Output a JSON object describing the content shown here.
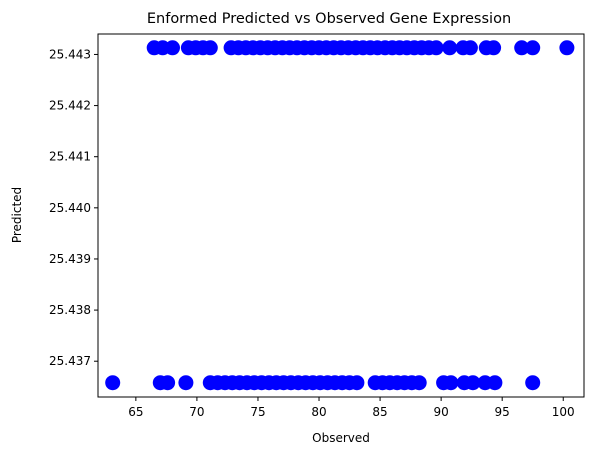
{
  "chart_data": {
    "type": "scatter",
    "title": "Enformed Predicted vs Observed Gene Expression",
    "xlabel": "Observed",
    "ylabel": "Predicted",
    "xlim": [
      61.9,
      101.7
    ],
    "ylim": [
      25.4363,
      25.4434
    ],
    "xticks": [
      65,
      70,
      75,
      80,
      85,
      90,
      95,
      100
    ],
    "yticks": [
      25.437,
      25.438,
      25.439,
      25.44,
      25.441,
      25.442,
      25.443
    ],
    "ytick_decimals": 3,
    "marker_color": "#0000ff",
    "grid": false,
    "series": [
      {
        "values": [
          [
            66.5,
            25.44313
          ],
          [
            67.2,
            25.44313
          ],
          [
            68.0,
            25.44313
          ],
          [
            69.3,
            25.44313
          ],
          [
            69.9,
            25.44313
          ],
          [
            70.5,
            25.44313
          ],
          [
            71.1,
            25.44313
          ],
          [
            72.8,
            25.44313
          ],
          [
            73.4,
            25.44313
          ],
          [
            74.0,
            25.44313
          ],
          [
            74.6,
            25.44313
          ],
          [
            75.2,
            25.44313
          ],
          [
            75.8,
            25.44313
          ],
          [
            76.4,
            25.44313
          ],
          [
            77.0,
            25.44313
          ],
          [
            77.6,
            25.44313
          ],
          [
            78.2,
            25.44313
          ],
          [
            78.8,
            25.44313
          ],
          [
            79.4,
            25.44313
          ],
          [
            80.0,
            25.44313
          ],
          [
            80.6,
            25.44313
          ],
          [
            81.2,
            25.44313
          ],
          [
            81.8,
            25.44313
          ],
          [
            82.4,
            25.44313
          ],
          [
            83.0,
            25.44313
          ],
          [
            83.6,
            25.44313
          ],
          [
            84.2,
            25.44313
          ],
          [
            84.8,
            25.44313
          ],
          [
            85.4,
            25.44313
          ],
          [
            86.0,
            25.44313
          ],
          [
            86.6,
            25.44313
          ],
          [
            87.2,
            25.44313
          ],
          [
            87.8,
            25.44313
          ],
          [
            88.4,
            25.44313
          ],
          [
            89.0,
            25.44313
          ],
          [
            89.6,
            25.44313
          ],
          [
            90.7,
            25.44313
          ],
          [
            91.8,
            25.44313
          ],
          [
            92.4,
            25.44313
          ],
          [
            93.7,
            25.44313
          ],
          [
            94.3,
            25.44313
          ],
          [
            96.6,
            25.44313
          ],
          [
            97.5,
            25.44313
          ],
          [
            100.3,
            25.44313
          ],
          [
            63.1,
            25.43658
          ],
          [
            67.0,
            25.43658
          ],
          [
            67.6,
            25.43658
          ],
          [
            69.1,
            25.43658
          ],
          [
            71.1,
            25.43658
          ],
          [
            71.7,
            25.43658
          ],
          [
            72.3,
            25.43658
          ],
          [
            72.9,
            25.43658
          ],
          [
            73.5,
            25.43658
          ],
          [
            74.1,
            25.43658
          ],
          [
            74.7,
            25.43658
          ],
          [
            75.3,
            25.43658
          ],
          [
            75.9,
            25.43658
          ],
          [
            76.5,
            25.43658
          ],
          [
            77.1,
            25.43658
          ],
          [
            77.7,
            25.43658
          ],
          [
            78.3,
            25.43658
          ],
          [
            78.9,
            25.43658
          ],
          [
            79.5,
            25.43658
          ],
          [
            80.1,
            25.43658
          ],
          [
            80.7,
            25.43658
          ],
          [
            81.3,
            25.43658
          ],
          [
            81.9,
            25.43658
          ],
          [
            82.5,
            25.43658
          ],
          [
            83.1,
            25.43658
          ],
          [
            84.6,
            25.43658
          ],
          [
            85.2,
            25.43658
          ],
          [
            85.8,
            25.43658
          ],
          [
            86.4,
            25.43658
          ],
          [
            87.0,
            25.43658
          ],
          [
            87.6,
            25.43658
          ],
          [
            88.2,
            25.43658
          ],
          [
            90.2,
            25.43658
          ],
          [
            90.8,
            25.43658
          ],
          [
            91.9,
            25.43658
          ],
          [
            92.6,
            25.43658
          ],
          [
            93.6,
            25.43658
          ],
          [
            94.4,
            25.43658
          ],
          [
            97.5,
            25.43658
          ]
        ]
      }
    ]
  }
}
